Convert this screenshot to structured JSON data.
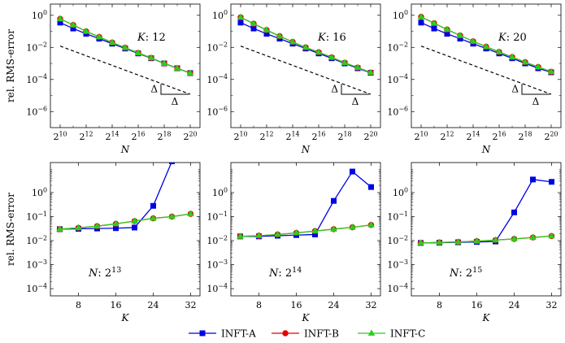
{
  "colors": {
    "INFT-A": "#0000e6",
    "INFT-B": "#e60000",
    "INFT-C": "#2ecc1f",
    "axis": "#000000",
    "reference": "#000000"
  },
  "legend": {
    "placement": "bottom-center",
    "entries": [
      {
        "name": "INFT-A",
        "marker": "square"
      },
      {
        "name": "INFT-B",
        "marker": "circle"
      },
      {
        "name": "INFT-C",
        "marker": "triangle"
      }
    ]
  },
  "chart_data": [
    {
      "type": "line",
      "yscale": "log",
      "xscale": "log2",
      "xlabel": "N",
      "ylabel": "rel. RMS-error",
      "annotation": "K: 12",
      "xlim": [
        10,
        20
      ],
      "ylim": [
        -7,
        0.7
      ],
      "xticks": [
        10,
        12,
        14,
        16,
        18,
        20
      ],
      "xtick_labels": [
        "2^10",
        "2^12",
        "2^14",
        "2^16",
        "2^18",
        "2^20"
      ],
      "yticks": [
        -6,
        -4,
        -2,
        0
      ],
      "ytick_labels": [
        "10^-6",
        "10^-4",
        "10^-2",
        "10^0"
      ],
      "x": [
        10,
        11,
        12,
        13,
        14,
        15,
        16,
        17,
        18,
        19,
        20
      ],
      "series": [
        {
          "name": "INFT-A",
          "values": [
            0.35,
            0.15,
            0.07,
            0.035,
            0.017,
            0.0085,
            0.0042,
            0.0021,
            0.001,
            0.0005,
            0.00025
          ]
        },
        {
          "name": "INFT-B",
          "values": [
            0.6,
            0.25,
            0.1,
            0.045,
            0.02,
            0.0095,
            0.0045,
            0.0022,
            0.001,
            0.0005,
            0.00025
          ]
        },
        {
          "name": "INFT-C",
          "values": [
            0.6,
            0.25,
            0.1,
            0.045,
            0.02,
            0.0095,
            0.0045,
            0.0022,
            0.001,
            0.0005,
            0.00025
          ]
        }
      ],
      "reference_slope": {
        "x": [
          10,
          20
        ],
        "y": [
          0.012,
          1.2e-05
        ],
        "label": "Δ"
      }
    },
    {
      "type": "line",
      "yscale": "log",
      "xscale": "log2",
      "xlabel": "N",
      "ylabel": "",
      "annotation": "K: 16",
      "xlim": [
        10,
        20
      ],
      "ylim": [
        -7,
        0.7
      ],
      "xticks": [
        10,
        12,
        14,
        16,
        18,
        20
      ],
      "xtick_labels": [
        "2^10",
        "2^12",
        "2^14",
        "2^16",
        "2^18",
        "2^20"
      ],
      "yticks": [
        -6,
        -4,
        -2,
        0
      ],
      "ytick_labels": [
        "10^-6",
        "10^-4",
        "10^-2",
        "10^0"
      ],
      "x": [
        10,
        11,
        12,
        13,
        14,
        15,
        16,
        17,
        18,
        19,
        20
      ],
      "series": [
        {
          "name": "INFT-A",
          "values": [
            0.35,
            0.15,
            0.07,
            0.035,
            0.017,
            0.0085,
            0.0042,
            0.0021,
            0.001,
            0.0005,
            0.00026
          ]
        },
        {
          "name": "INFT-B",
          "values": [
            0.75,
            0.3,
            0.12,
            0.05,
            0.022,
            0.01,
            0.005,
            0.0024,
            0.0011,
            0.00055,
            0.00027
          ]
        },
        {
          "name": "INFT-C",
          "values": [
            0.75,
            0.3,
            0.12,
            0.05,
            0.022,
            0.01,
            0.005,
            0.0024,
            0.0011,
            0.00055,
            0.00027
          ]
        }
      ],
      "reference_slope": {
        "x": [
          10,
          20
        ],
        "y": [
          0.012,
          1.2e-05
        ],
        "label": "Δ"
      }
    },
    {
      "type": "line",
      "yscale": "log",
      "xscale": "log2",
      "xlabel": "N",
      "ylabel": "",
      "annotation": "K: 20",
      "xlim": [
        10,
        20
      ],
      "ylim": [
        -7,
        0.7
      ],
      "xticks": [
        10,
        12,
        14,
        16,
        18,
        20
      ],
      "xtick_labels": [
        "2^10",
        "2^12",
        "2^14",
        "2^16",
        "2^18",
        "2^20"
      ],
      "yticks": [
        -6,
        -4,
        -2,
        0
      ],
      "ytick_labels": [
        "10^-6",
        "10^-4",
        "10^-2",
        "10^0"
      ],
      "x": [
        10,
        11,
        12,
        13,
        14,
        15,
        16,
        17,
        18,
        19,
        20
      ],
      "series": [
        {
          "name": "INFT-A",
          "values": [
            0.35,
            0.15,
            0.07,
            0.035,
            0.017,
            0.0085,
            0.0042,
            0.0021,
            0.001,
            0.0005,
            0.00028
          ]
        },
        {
          "name": "INFT-B",
          "values": [
            0.8,
            0.32,
            0.13,
            0.055,
            0.024,
            0.011,
            0.0052,
            0.0025,
            0.0012,
            0.0006,
            0.0003
          ]
        },
        {
          "name": "INFT-C",
          "values": [
            0.8,
            0.32,
            0.13,
            0.055,
            0.024,
            0.011,
            0.0052,
            0.0025,
            0.0012,
            0.0006,
            0.0003
          ]
        }
      ],
      "reference_slope": {
        "x": [
          10,
          20
        ],
        "y": [
          0.012,
          1.2e-05
        ],
        "label": "Δ"
      }
    },
    {
      "type": "line",
      "yscale": "log",
      "xlabel": "K",
      "ylabel": "rel. RMS-error",
      "annotation": "N: 2^13",
      "xlim": [
        2,
        34
      ],
      "ylim": [
        -4.3,
        1.25
      ],
      "xticks": [
        8,
        16,
        24,
        32
      ],
      "xtick_labels": [
        "8",
        "16",
        "24",
        "32"
      ],
      "yticks": [
        -4,
        -3,
        -2,
        -1,
        0
      ],
      "ytick_labels": [
        "10^-4",
        "10^-3",
        "10^-2",
        "10^-1",
        "10^0"
      ],
      "x": [
        4,
        8,
        12,
        16,
        20,
        24,
        28,
        32
      ],
      "series": [
        {
          "name": "INFT-A",
          "values": [
            0.03,
            0.031,
            0.032,
            0.033,
            0.035,
            0.28,
            20,
            null
          ]
        },
        {
          "name": "INFT-B",
          "values": [
            0.03,
            0.034,
            0.04,
            0.05,
            0.065,
            0.085,
            0.1,
            0.13
          ]
        },
        {
          "name": "INFT-C",
          "values": [
            0.03,
            0.034,
            0.04,
            0.05,
            0.065,
            0.085,
            0.1,
            0.13
          ]
        }
      ]
    },
    {
      "type": "line",
      "yscale": "log",
      "xlabel": "K",
      "ylabel": "",
      "annotation": "N: 2^14",
      "xlim": [
        2,
        34
      ],
      "ylim": [
        -4.3,
        1.25
      ],
      "xticks": [
        8,
        16,
        24,
        32
      ],
      "xtick_labels": [
        "8",
        "16",
        "24",
        "32"
      ],
      "yticks": [
        -4,
        -3,
        -2,
        -1,
        0
      ],
      "ytick_labels": [
        "10^-4",
        "10^-3",
        "10^-2",
        "10^-1",
        "10^0"
      ],
      "x": [
        4,
        8,
        12,
        16,
        20,
        24,
        28,
        32
      ],
      "series": [
        {
          "name": "INFT-A",
          "values": [
            0.015,
            0.015,
            0.016,
            0.017,
            0.018,
            0.45,
            7.5,
            1.7
          ]
        },
        {
          "name": "INFT-B",
          "values": [
            0.015,
            0.016,
            0.018,
            0.021,
            0.025,
            0.03,
            0.036,
            0.045
          ]
        },
        {
          "name": "INFT-C",
          "values": [
            0.015,
            0.016,
            0.018,
            0.021,
            0.025,
            0.03,
            0.036,
            0.045
          ]
        }
      ]
    },
    {
      "type": "line",
      "yscale": "log",
      "xlabel": "K",
      "ylabel": "",
      "annotation": "N: 2^15",
      "xlim": [
        2,
        34
      ],
      "ylim": [
        -4.3,
        1.25
      ],
      "xticks": [
        8,
        16,
        24,
        32
      ],
      "xtick_labels": [
        "8",
        "16",
        "24",
        "32"
      ],
      "yticks": [
        -4,
        -3,
        -2,
        -1,
        0
      ],
      "ytick_labels": [
        "10^-4",
        "10^-3",
        "10^-2",
        "10^-1",
        "10^0"
      ],
      "x": [
        4,
        8,
        12,
        16,
        20,
        24,
        28,
        32
      ],
      "series": [
        {
          "name": "INFT-A",
          "values": [
            0.008,
            0.0082,
            0.0085,
            0.0088,
            0.0092,
            0.15,
            3.5,
            2.8
          ]
        },
        {
          "name": "INFT-B",
          "values": [
            0.008,
            0.0084,
            0.0088,
            0.0095,
            0.0105,
            0.0118,
            0.0135,
            0.0155
          ]
        },
        {
          "name": "INFT-C",
          "values": [
            0.008,
            0.0084,
            0.0088,
            0.0095,
            0.0105,
            0.0118,
            0.0135,
            0.0155
          ]
        }
      ]
    }
  ]
}
